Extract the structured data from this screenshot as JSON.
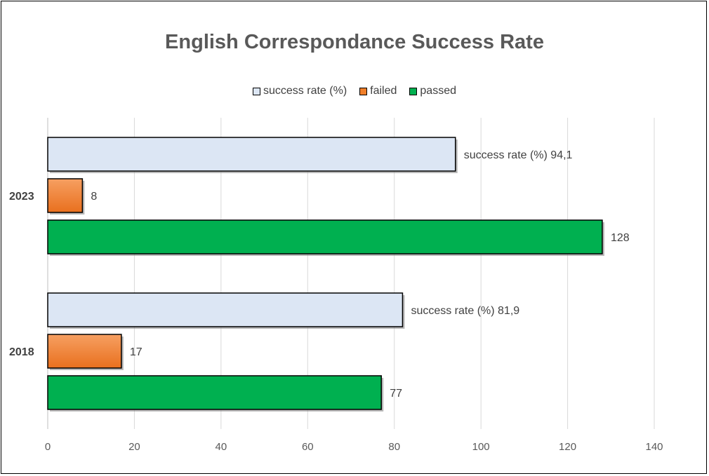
{
  "chart_data": {
    "type": "bar",
    "orientation": "horizontal",
    "title": "English Correspondance Success Rate",
    "categories": [
      "2023",
      "2018"
    ],
    "series": [
      {
        "name": "success rate (%)",
        "values": [
          94.1,
          81.9
        ],
        "labels": [
          "success rate (%) 94,1",
          "success rate (%) 81,9"
        ],
        "color": "#dce6f4"
      },
      {
        "name": "failed",
        "values": [
          8,
          17
        ],
        "labels": [
          "8",
          "17"
        ],
        "color": "#f07f2a"
      },
      {
        "name": "passed",
        "values": [
          128,
          77
        ],
        "labels": [
          "128",
          "77"
        ],
        "color": "#00b050"
      }
    ],
    "xlim": [
      0,
      140
    ],
    "xticks": [
      "0",
      "20",
      "40",
      "60",
      "80",
      "100",
      "120",
      "140"
    ],
    "grid": true,
    "legend_position": "top"
  }
}
